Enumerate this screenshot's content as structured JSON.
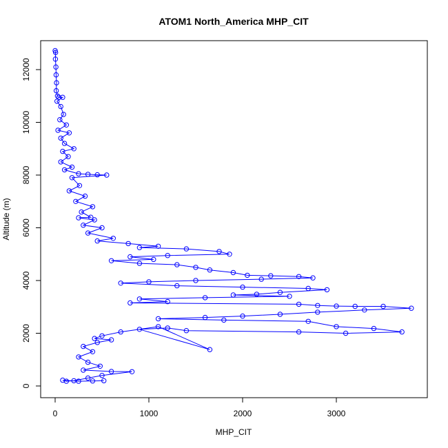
{
  "chart_data": {
    "type": "scatter",
    "title": "ATOM1 North_America MHP_CIT",
    "xlabel": "MHP_CIT",
    "ylabel": "Altitude (m)",
    "xlim": [
      0,
      3800
    ],
    "ylim": [
      0,
      12700
    ],
    "x_ticks": [
      0,
      1000,
      2000,
      3000
    ],
    "y_ticks": [
      0,
      2000,
      4000,
      6000,
      8000,
      10000,
      12000
    ],
    "x_tick_labels": [
      "0",
      "1000",
      "2000",
      "3000"
    ],
    "y_tick_labels": [
      "0",
      "2000",
      "4000",
      "6000",
      "8000",
      "10000",
      "12000"
    ],
    "grid": false,
    "point_style": "open-circle",
    "connected": true,
    "color": "#0000ff",
    "series": [
      {
        "points": [
          [
            0,
            12720
          ],
          [
            5,
            12650
          ],
          [
            3,
            12400
          ],
          [
            8,
            12100
          ],
          [
            10,
            11800
          ],
          [
            15,
            11500
          ],
          [
            12,
            11200
          ],
          [
            25,
            11000
          ],
          [
            40,
            10950
          ],
          [
            80,
            10950
          ],
          [
            20,
            10800
          ],
          [
            60,
            10600
          ],
          [
            90,
            10300
          ],
          [
            50,
            10100
          ],
          [
            120,
            9900
          ],
          [
            30,
            9700
          ],
          [
            150,
            9600
          ],
          [
            60,
            9400
          ],
          [
            100,
            9200
          ],
          [
            200,
            9000
          ],
          [
            80,
            8900
          ],
          [
            140,
            8700
          ],
          [
            60,
            8500
          ],
          [
            180,
            8300
          ],
          [
            100,
            8200
          ],
          [
            250,
            8050
          ],
          [
            350,
            8030
          ],
          [
            450,
            8010
          ],
          [
            550,
            8000
          ],
          [
            180,
            7900
          ],
          [
            260,
            7600
          ],
          [
            150,
            7400
          ],
          [
            320,
            7200
          ],
          [
            220,
            7000
          ],
          [
            400,
            6800
          ],
          [
            280,
            6600
          ],
          [
            380,
            6400
          ],
          [
            250,
            6380
          ],
          [
            420,
            6300
          ],
          [
            300,
            6100
          ],
          [
            500,
            6000
          ],
          [
            350,
            5800
          ],
          [
            620,
            5600
          ],
          [
            450,
            5500
          ],
          [
            780,
            5400
          ],
          [
            1100,
            5300
          ],
          [
            900,
            5250
          ],
          [
            1400,
            5200
          ],
          [
            1750,
            5100
          ],
          [
            1860,
            5000
          ],
          [
            1200,
            4950
          ],
          [
            800,
            4900
          ],
          [
            1050,
            4800
          ],
          [
            600,
            4750
          ],
          [
            900,
            4650
          ],
          [
            1300,
            4600
          ],
          [
            1500,
            4500
          ],
          [
            1650,
            4400
          ],
          [
            1900,
            4300
          ],
          [
            2050,
            4200
          ],
          [
            2300,
            4180
          ],
          [
            2600,
            4150
          ],
          [
            2750,
            4100
          ],
          [
            2200,
            4050
          ],
          [
            1500,
            4000
          ],
          [
            1000,
            3950
          ],
          [
            700,
            3900
          ],
          [
            1300,
            3800
          ],
          [
            2000,
            3750
          ],
          [
            2700,
            3700
          ],
          [
            2900,
            3650
          ],
          [
            2400,
            3550
          ],
          [
            2150,
            3480
          ],
          [
            1900,
            3450
          ],
          [
            2500,
            3400
          ],
          [
            1600,
            3350
          ],
          [
            900,
            3300
          ],
          [
            1200,
            3200
          ],
          [
            800,
            3150
          ],
          [
            2600,
            3100
          ],
          [
            2800,
            3050
          ],
          [
            3000,
            3030
          ],
          [
            3200,
            3020
          ],
          [
            3500,
            3020
          ],
          [
            3800,
            2950
          ],
          [
            3300,
            2880
          ],
          [
            2800,
            2800
          ],
          [
            2400,
            2720
          ],
          [
            2000,
            2650
          ],
          [
            1600,
            2600
          ],
          [
            1100,
            2550
          ],
          [
            1800,
            2500
          ],
          [
            2700,
            2450
          ],
          [
            3000,
            2250
          ],
          [
            3400,
            2180
          ],
          [
            3700,
            2050
          ],
          [
            3100,
            2000
          ],
          [
            2600,
            2050
          ],
          [
            1400,
            2100
          ],
          [
            1200,
            2200
          ],
          [
            900,
            2150
          ],
          [
            1650,
            1380
          ],
          [
            1100,
            2250
          ],
          [
            700,
            2050
          ],
          [
            500,
            1900
          ],
          [
            420,
            1800
          ],
          [
            600,
            1750
          ],
          [
            450,
            1650
          ],
          [
            300,
            1500
          ],
          [
            400,
            1300
          ],
          [
            250,
            1100
          ],
          [
            350,
            900
          ],
          [
            480,
            750
          ],
          [
            300,
            600
          ],
          [
            600,
            550
          ],
          [
            820,
            540
          ],
          [
            500,
            400
          ],
          [
            350,
            300
          ],
          [
            200,
            200
          ],
          [
            120,
            180
          ],
          [
            80,
            220
          ],
          [
            250,
            180
          ],
          [
            400,
            190
          ],
          [
            520,
            200
          ]
        ]
      }
    ]
  }
}
